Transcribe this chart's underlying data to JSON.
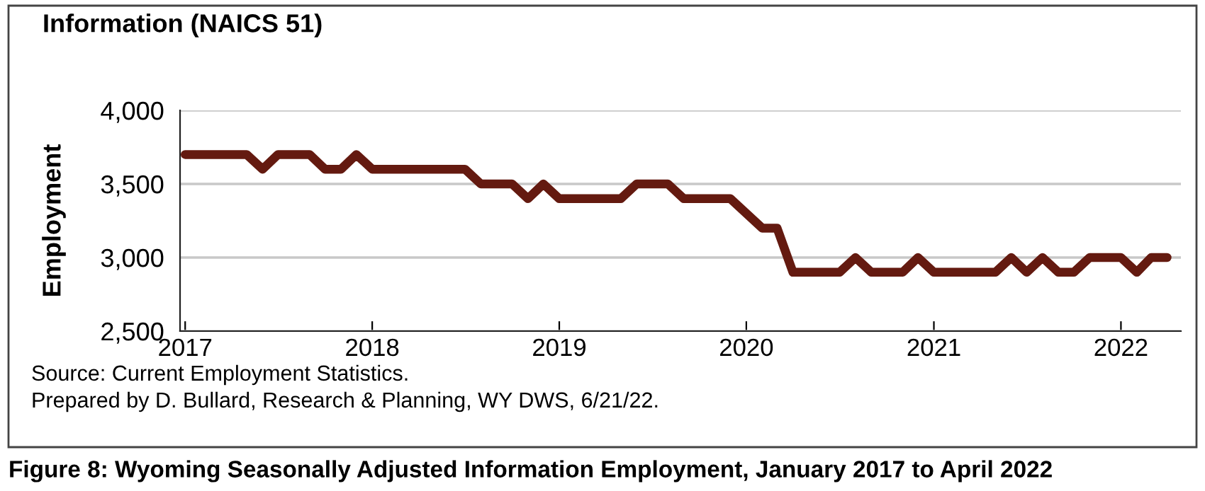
{
  "chart_data": {
    "type": "line",
    "title": "Information (NAICS 51)",
    "ylabel": "Employment",
    "annotations": [
      "Source: Current Employment Statistics.",
      "Prepared by D. Bullard, Research & Planning, WY DWS, 6/21/22.",
      "Figure 8: Wyoming Seasonally Adjusted Information Employment, January 2017 to April 2022"
    ],
    "x": [
      "2017-01",
      "2017-02",
      "2017-03",
      "2017-04",
      "2017-05",
      "2017-06",
      "2017-07",
      "2017-08",
      "2017-09",
      "2017-10",
      "2017-11",
      "2017-12",
      "2018-01",
      "2018-02",
      "2018-03",
      "2018-04",
      "2018-05",
      "2018-06",
      "2018-07",
      "2018-08",
      "2018-09",
      "2018-10",
      "2018-11",
      "2018-12",
      "2019-01",
      "2019-02",
      "2019-03",
      "2019-04",
      "2019-05",
      "2019-06",
      "2019-07",
      "2019-08",
      "2019-09",
      "2019-10",
      "2019-11",
      "2019-12",
      "2020-01",
      "2020-02",
      "2020-03",
      "2020-04",
      "2020-05",
      "2020-06",
      "2020-07",
      "2020-08",
      "2020-09",
      "2020-10",
      "2020-11",
      "2020-12",
      "2021-01",
      "2021-02",
      "2021-03",
      "2021-04",
      "2021-05",
      "2021-06",
      "2021-07",
      "2021-08",
      "2021-09",
      "2021-10",
      "2021-11",
      "2021-12",
      "2022-01",
      "2022-02",
      "2022-03",
      "2022-04"
    ],
    "series": [
      {
        "color": "#641a10",
        "values": [
          3700,
          3700,
          3700,
          3700,
          3700,
          3600,
          3700,
          3700,
          3700,
          3600,
          3600,
          3700,
          3600,
          3600,
          3600,
          3600,
          3600,
          3600,
          3600,
          3500,
          3500,
          3500,
          3400,
          3500,
          3400,
          3400,
          3400,
          3400,
          3400,
          3500,
          3500,
          3500,
          3400,
          3400,
          3400,
          3400,
          3300,
          3200,
          3200,
          2900,
          2900,
          2900,
          2900,
          3000,
          2900,
          2900,
          2900,
          3000,
          2900,
          2900,
          2900,
          2900,
          2900,
          3000,
          2900,
          3000,
          2900,
          2900,
          3000,
          3000,
          3000,
          2900,
          3000,
          3000
        ]
      }
    ],
    "xlim": [
      "2016-12-22",
      "2022-04-28"
    ],
    "xticks": [
      {
        "value": "2017-01-01",
        "label": "2017"
      },
      {
        "value": "2018-01-01",
        "label": "2018"
      },
      {
        "value": "2019-01-01",
        "label": "2019"
      },
      {
        "value": "2020-01-01",
        "label": "2020"
      },
      {
        "value": "2021-01-01",
        "label": "2021"
      },
      {
        "value": "2022-01-01",
        "label": "2022"
      }
    ],
    "ylim": [
      2500,
      4000
    ],
    "yticks": [
      {
        "value": 2500,
        "label": "2,500"
      },
      {
        "value": 3000,
        "label": "3,000"
      },
      {
        "value": 3500,
        "label": "3,500"
      },
      {
        "value": 4000,
        "label": "4,000"
      }
    ],
    "grid": "y",
    "marker": "none",
    "line_style": "solid"
  }
}
